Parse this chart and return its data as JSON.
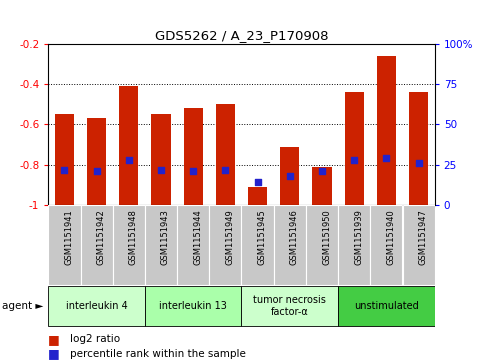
{
  "title": "GDS5262 / A_23_P170908",
  "samples": [
    "GSM1151941",
    "GSM1151942",
    "GSM1151948",
    "GSM1151943",
    "GSM1151944",
    "GSM1151949",
    "GSM1151945",
    "GSM1151946",
    "GSM1151950",
    "GSM1151939",
    "GSM1151940",
    "GSM1151947"
  ],
  "log2_ratio": [
    -0.55,
    -0.57,
    -0.41,
    -0.55,
    -0.52,
    -0.5,
    -0.91,
    -0.71,
    -0.81,
    -0.44,
    -0.26,
    -0.44
  ],
  "percentile_rank": [
    22,
    21,
    28,
    22,
    21,
    22,
    14,
    18,
    21,
    28,
    29,
    26
  ],
  "agents": [
    {
      "label": "interleukin 4",
      "start": 0,
      "end": 3,
      "color": "#ccffcc"
    },
    {
      "label": "interleukin 13",
      "start": 3,
      "end": 6,
      "color": "#aaffaa"
    },
    {
      "label": "tumor necrosis\nfactor-α",
      "start": 6,
      "end": 9,
      "color": "#ccffcc"
    },
    {
      "label": "unstimulated",
      "start": 9,
      "end": 12,
      "color": "#44cc44"
    }
  ],
  "bar_color": "#cc2200",
  "percentile_color": "#2222cc",
  "ylim_left": [
    -1.0,
    -0.2
  ],
  "ylim_right": [
    0,
    100
  ],
  "yticks_left": [
    -1.0,
    -0.8,
    -0.6,
    -0.4,
    -0.2
  ],
  "yticks_right": [
    0,
    25,
    50,
    75,
    100
  ],
  "ytick_labels_left": [
    "-1",
    "-0.8",
    "-0.6",
    "-0.4",
    "-0.2"
  ],
  "ytick_labels_right": [
    "0",
    "25",
    "50",
    "75",
    "100%"
  ],
  "xlabel_log2": "log2 ratio",
  "xlabel_pct": "percentile rank within the sample",
  "agent_label": "agent",
  "bg_color": "#ffffff",
  "plot_bg": "#ffffff",
  "bar_width": 0.6,
  "sample_box_color": "#c8c8c8",
  "grid_dotted_ticks": [
    -0.8,
    -0.6,
    -0.4
  ]
}
